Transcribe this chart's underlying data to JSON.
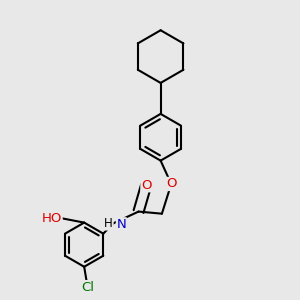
{
  "bg_color": "#e8e8e8",
  "bond_color": "#000000",
  "bond_width": 1.5,
  "atom_colors": {
    "O": "#dd0000",
    "N": "#0000cc",
    "Cl": "#007700",
    "H": "#000000",
    "C": "#000000"
  },
  "font_size": 8.5
}
